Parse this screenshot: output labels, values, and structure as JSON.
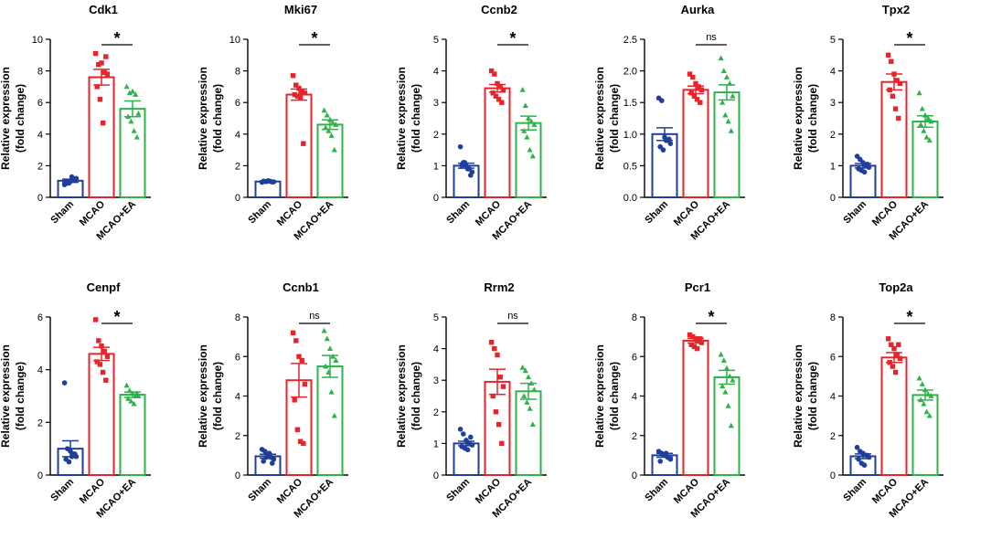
{
  "colors": {
    "sham": "#1f3f9a",
    "mcao": "#e8242b",
    "mcao_ea": "#2db34a",
    "axis": "#000000"
  },
  "shared": {
    "ylabel_line1": "Relative expression",
    "ylabel_line2": "(fold change)",
    "categories": [
      "Sham",
      "MCAO",
      "MCAO+EA"
    ],
    "markers": [
      "circle",
      "square",
      "triangle"
    ]
  },
  "chart_data": [
    {
      "type": "bar",
      "title": "Cdk1",
      "categories": [
        "Sham",
        "MCAO",
        "MCAO+EA"
      ],
      "ylim": [
        0,
        10
      ],
      "yticks": [
        "0",
        "2",
        "4",
        "6",
        "8",
        "10"
      ],
      "values": [
        1.05,
        7.6,
        5.6
      ],
      "errors": [
        0.1,
        0.5,
        0.5
      ],
      "points": [
        [
          0.8,
          0.9,
          1.0,
          1.1,
          1.2,
          1.0,
          0.9,
          1.3,
          1.1
        ],
        [
          9.1,
          8.4,
          8.5,
          7.9,
          7.8,
          7.0,
          6.2,
          4.7,
          8.9
        ],
        [
          7.0,
          6.6,
          6.7,
          6.5,
          5.3,
          5.1,
          4.8,
          4.2,
          3.8
        ]
      ],
      "significance": "*"
    },
    {
      "type": "bar",
      "title": "Mki67",
      "categories": [
        "Sham",
        "MCAO",
        "MCAO+EA"
      ],
      "ylim": [
        0,
        10
      ],
      "yticks": [
        "0",
        "2",
        "4",
        "6",
        "8",
        "10"
      ],
      "values": [
        1.0,
        6.5,
        4.6
      ],
      "errors": [
        0.05,
        0.35,
        0.3
      ],
      "points": [
        [
          0.95,
          1.0,
          1.05,
          1.0,
          0.98,
          1.02,
          1.0,
          1.03,
          0.97
        ],
        [
          7.7,
          7.1,
          6.9,
          6.7,
          6.6,
          6.5,
          6.4,
          6.3,
          3.4
        ],
        [
          5.5,
          5.2,
          4.9,
          4.7,
          4.6,
          4.4,
          4.2,
          3.9,
          3.0
        ]
      ],
      "significance": "*"
    },
    {
      "type": "bar",
      "title": "Ccnb2",
      "categories": [
        "Sham",
        "MCAO",
        "MCAO+EA"
      ],
      "ylim": [
        0,
        5
      ],
      "yticks": [
        "0",
        "1",
        "2",
        "3",
        "4",
        "5"
      ],
      "values": [
        1.0,
        3.45,
        2.35
      ],
      "errors": [
        0.08,
        0.12,
        0.22
      ],
      "points": [
        [
          1.6,
          1.1,
          1.0,
          0.9,
          0.8,
          1.0,
          1.1,
          0.9,
          0.7
        ],
        [
          4.0,
          3.9,
          3.6,
          3.5,
          3.4,
          3.3,
          3.2,
          3.1,
          3.0
        ],
        [
          3.4,
          2.9,
          2.5,
          2.4,
          2.3,
          2.1,
          1.9,
          1.5,
          1.3
        ]
      ],
      "significance": "*"
    },
    {
      "type": "bar",
      "title": "Aurka",
      "categories": [
        "Sham",
        "MCAO",
        "MCAO+EA"
      ],
      "ylim": [
        0,
        2.5
      ],
      "yticks": [
        "0.0",
        "0.5",
        "1.0",
        "1.5",
        "2.0",
        "2.5"
      ],
      "values": [
        1.0,
        1.7,
        1.66
      ],
      "errors": [
        0.1,
        0.06,
        0.12
      ],
      "points": [
        [
          1.57,
          1.53,
          0.95,
          0.9,
          0.85,
          0.8,
          0.75,
          0.9,
          0.92
        ],
        [
          1.95,
          1.9,
          1.8,
          1.75,
          1.7,
          1.65,
          1.6,
          1.55,
          1.5
        ],
        [
          2.2,
          2.0,
          1.9,
          1.8,
          1.6,
          1.5,
          1.3,
          1.2,
          1.05
        ]
      ],
      "significance": "ns"
    },
    {
      "type": "bar",
      "title": "Tpx2",
      "categories": [
        "Sham",
        "MCAO",
        "MCAO+EA"
      ],
      "ylim": [
        0,
        5
      ],
      "yticks": [
        "0",
        "1",
        "2",
        "3",
        "4",
        "5"
      ],
      "values": [
        1.0,
        3.65,
        2.4
      ],
      "errors": [
        0.07,
        0.25,
        0.18
      ],
      "points": [
        [
          1.3,
          1.2,
          1.1,
          1.0,
          0.95,
          0.9,
          0.85,
          0.8,
          1.05
        ],
        [
          4.5,
          4.3,
          3.9,
          3.7,
          3.6,
          3.4,
          3.2,
          2.8,
          2.5
        ],
        [
          3.3,
          2.8,
          2.6,
          2.5,
          2.4,
          2.3,
          2.1,
          1.9,
          1.8
        ]
      ],
      "significance": "*"
    },
    {
      "type": "bar",
      "title": "Cenpf",
      "categories": [
        "Sham",
        "MCAO",
        "MCAO+EA"
      ],
      "ylim": [
        0,
        6
      ],
      "yticks": [
        "0",
        "2",
        "4",
        "6"
      ],
      "values": [
        1.0,
        4.6,
        3.05
      ],
      "errors": [
        0.3,
        0.25,
        0.1
      ],
      "points": [
        [
          3.5,
          1.0,
          0.9,
          0.8,
          0.7,
          0.6,
          0.5,
          0.7,
          0.8
        ],
        [
          5.9,
          5.1,
          4.9,
          4.7,
          4.5,
          4.3,
          4.2,
          3.9,
          3.6
        ],
        [
          3.4,
          3.2,
          3.1,
          3.0,
          3.0,
          2.9,
          2.8,
          2.7,
          3.1
        ]
      ],
      "significance": "*"
    },
    {
      "type": "bar",
      "title": "Ccnb1",
      "categories": [
        "Sham",
        "MCAO",
        "MCAO+EA"
      ],
      "ylim": [
        0,
        8
      ],
      "yticks": [
        "0",
        "2",
        "4",
        "6",
        "8"
      ],
      "values": [
        0.95,
        4.8,
        5.5
      ],
      "errors": [
        0.1,
        0.85,
        0.55
      ],
      "points": [
        [
          1.3,
          1.2,
          1.0,
          0.9,
          0.8,
          0.7,
          0.9,
          1.1,
          0.6
        ],
        [
          7.2,
          6.8,
          6.0,
          5.8,
          4.6,
          3.8,
          2.3,
          1.7,
          1.6
        ],
        [
          7.3,
          6.9,
          6.4,
          6.0,
          5.8,
          5.5,
          5.2,
          4.2,
          3.0
        ]
      ],
      "significance": "ns"
    },
    {
      "type": "bar",
      "title": "Rrm2",
      "categories": [
        "Sham",
        "MCAO",
        "MCAO+EA"
      ],
      "ylim": [
        0,
        5
      ],
      "yticks": [
        "0",
        "1",
        "2",
        "3",
        "4",
        "5"
      ],
      "values": [
        1.0,
        2.95,
        2.65
      ],
      "errors": [
        0.07,
        0.4,
        0.25
      ],
      "points": [
        [
          1.45,
          1.3,
          1.1,
          1.0,
          0.95,
          0.9,
          0.85,
          0.8,
          1.2
        ],
        [
          4.2,
          4.0,
          3.8,
          3.1,
          2.8,
          2.5,
          2.0,
          1.6,
          1.0
        ],
        [
          3.4,
          3.3,
          3.1,
          2.9,
          2.7,
          2.5,
          2.3,
          2.1,
          1.6
        ]
      ],
      "significance": "ns"
    },
    {
      "type": "bar",
      "title": "Pcr1",
      "categories": [
        "Sham",
        "MCAO",
        "MCAO+EA"
      ],
      "ylim": [
        0,
        8
      ],
      "yticks": [
        "0",
        "2",
        "4",
        "6",
        "8"
      ],
      "values": [
        1.0,
        6.8,
        4.95
      ],
      "errors": [
        0.1,
        0.12,
        0.35
      ],
      "points": [
        [
          1.2,
          1.1,
          1.0,
          0.9,
          0.8,
          0.7,
          1.0,
          1.1,
          0.9
        ],
        [
          7.1,
          7.0,
          6.9,
          6.8,
          6.7,
          6.6,
          6.5,
          6.4,
          6.9
        ],
        [
          6.1,
          5.8,
          5.4,
          5.0,
          4.8,
          4.5,
          4.2,
          3.5,
          2.5
        ]
      ],
      "significance": "*"
    },
    {
      "type": "bar",
      "title": "Top2a",
      "categories": [
        "Sham",
        "MCAO",
        "MCAO+EA"
      ],
      "ylim": [
        0,
        8
      ],
      "yticks": [
        "0",
        "2",
        "4",
        "6",
        "8"
      ],
      "values": [
        0.95,
        5.95,
        4.05
      ],
      "errors": [
        0.12,
        0.25,
        0.25
      ],
      "points": [
        [
          1.4,
          1.2,
          1.1,
          1.0,
          0.9,
          0.8,
          0.6,
          0.5,
          1.0
        ],
        [
          6.9,
          6.6,
          6.4,
          6.1,
          5.9,
          5.7,
          5.5,
          5.2,
          6.6
        ],
        [
          4.9,
          4.6,
          4.3,
          4.1,
          4.0,
          3.8,
          3.6,
          3.2,
          3.0
        ]
      ],
      "significance": "*"
    }
  ]
}
